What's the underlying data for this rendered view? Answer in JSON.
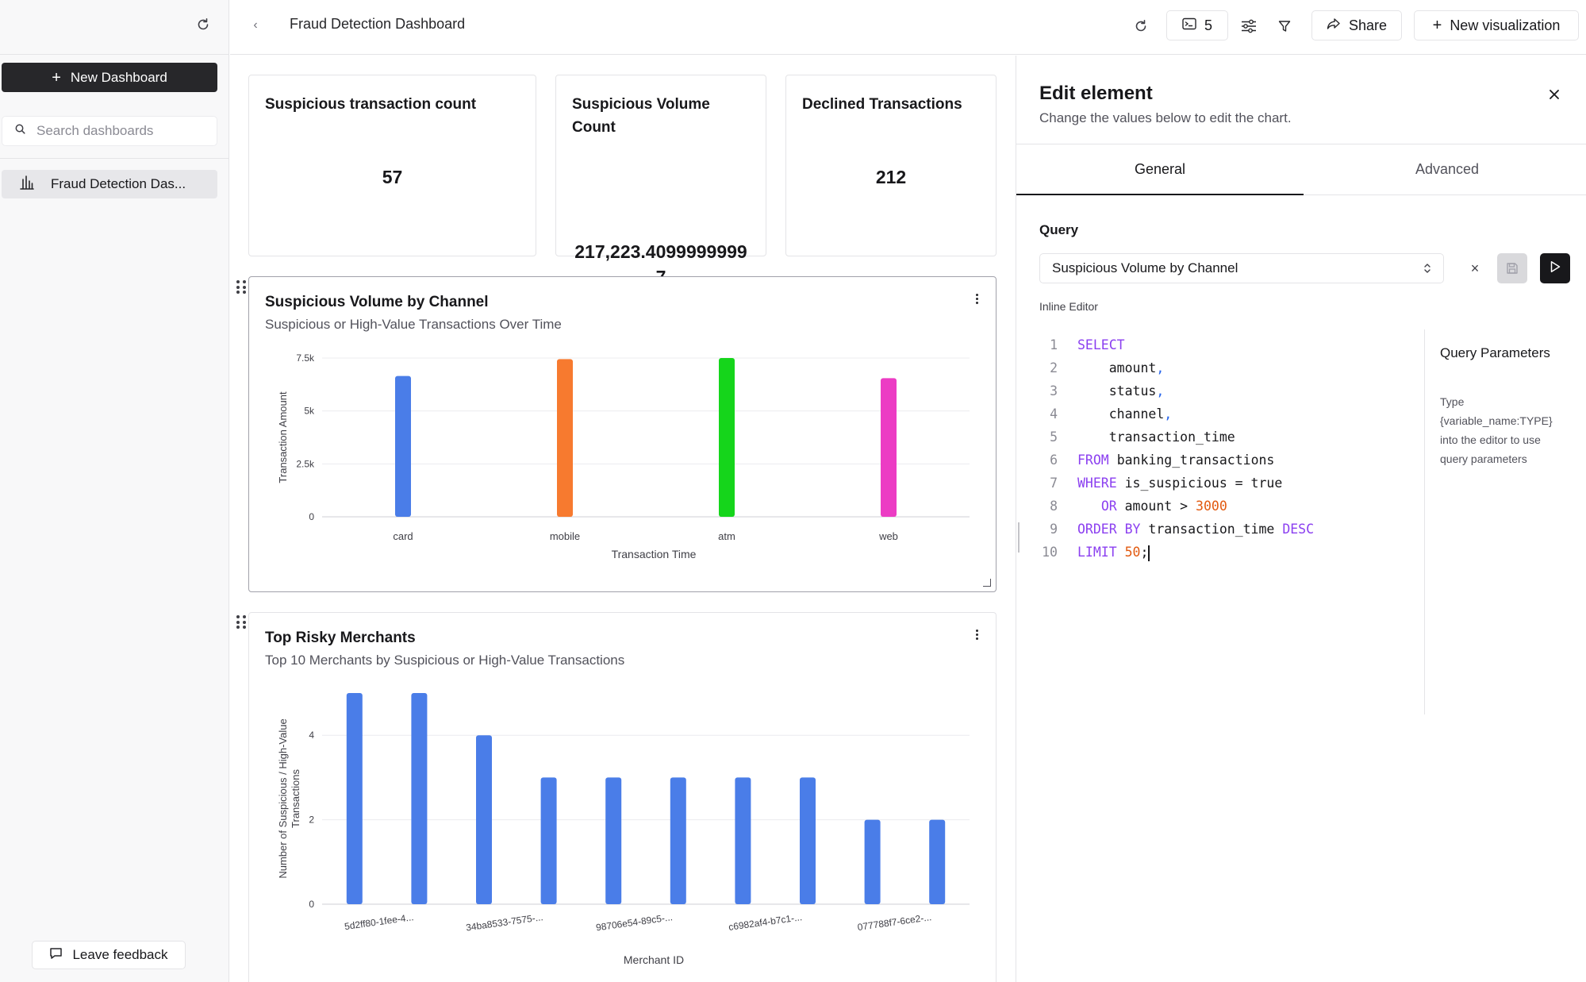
{
  "sidebar": {
    "new_dashboard_label": "New Dashboard",
    "search_placeholder": "Search dashboards",
    "items": [
      {
        "label": "Fraud Detection Das..."
      }
    ],
    "feedback_label": "Leave feedback"
  },
  "topbar": {
    "title": "Fraud Detection Dashboard",
    "queries_count": "5",
    "share_label": "Share",
    "new_viz_label": "New visualization"
  },
  "kpis": [
    {
      "title": "Suspicious transaction count",
      "value": "57"
    },
    {
      "title_line1": "Suspicious Volume",
      "title_line2": "Count",
      "value_line1": "217,223.4099999999",
      "value_line2": "7"
    },
    {
      "title": "Declined Transactions",
      "value": "212"
    }
  ],
  "charts": [
    {
      "title": "Suspicious Volume by Channel",
      "subtitle": "Suspicious or High-Value Transactions Over Time"
    },
    {
      "title": "Top Risky Merchants",
      "subtitle": "Top 10 Merchants by Suspicious or High-Value Transactions"
    }
  ],
  "chart_data": [
    {
      "type": "bar",
      "title": "Suspicious Volume by Channel",
      "subtitle": "Suspicious or High-Value Transactions Over Time",
      "xlabel": "Transaction Time",
      "ylabel": "Transaction Amount",
      "categories": [
        "card",
        "mobile",
        "atm",
        "web"
      ],
      "values": [
        6650,
        7450,
        7500,
        6550
      ],
      "colors": [
        "#4a7de8",
        "#f77a2f",
        "#15d51b",
        "#ec3cc4"
      ],
      "ylim": [
        0,
        7500
      ],
      "yticks": [
        0,
        2500,
        5000,
        7500
      ],
      "ytick_labels": [
        "0",
        "2.5k",
        "5k",
        "7.5k"
      ],
      "grid": true
    },
    {
      "type": "bar",
      "title": "Top Risky Merchants",
      "subtitle": "Top 10 Merchants by Suspicious or High-Value Transactions",
      "xlabel": "Merchant ID",
      "ylabel_line1": "Number of Suspicious / High-Value",
      "ylabel_line2": "Transactions",
      "tick_labels": [
        "5d2ff80-1fee-4...",
        "34ba8533-7575-...",
        "98706e54-89c5-...",
        "c6982af4-b7c1-...",
        "077788f7-6ce2-..."
      ],
      "values": [
        5,
        5,
        4,
        3,
        3,
        3,
        3,
        3,
        2,
        2
      ],
      "color": "#4a7de8",
      "ylim": [
        0,
        5
      ],
      "yticks": [
        0,
        2,
        4
      ],
      "grid": true
    }
  ],
  "panel": {
    "title": "Edit element",
    "subtitle": "Change the values below to edit the chart.",
    "tabs": [
      "General",
      "Advanced"
    ],
    "query_label": "Query",
    "query_value": "Suspicious Volume by Channel",
    "clear_label": "×",
    "inline_editor_label": "Inline Editor",
    "params_title": "Query Parameters",
    "params_help_lines": [
      "Type",
      "{variable_name:TYPE}",
      "into the editor to use",
      "query parameters"
    ],
    "code": {
      "l1": "SELECT",
      "l2": "amount",
      "l3": "status",
      "l4": "channel",
      "l5": "transaction_time",
      "l6_kw": "FROM",
      "l6": "banking_transactions",
      "l7_kw": "WHERE",
      "l7": "is_suspicious = true",
      "l8_kw": "OR",
      "l8": "amount >",
      "l8_num": "3000",
      "l9_kw": "ORDER BY",
      "l9": "transaction_time",
      "l9_kw2": "DESC",
      "l10_kw": "LIMIT",
      "l10_num": "50",
      "comma": ",",
      "semicolon": ";"
    }
  }
}
